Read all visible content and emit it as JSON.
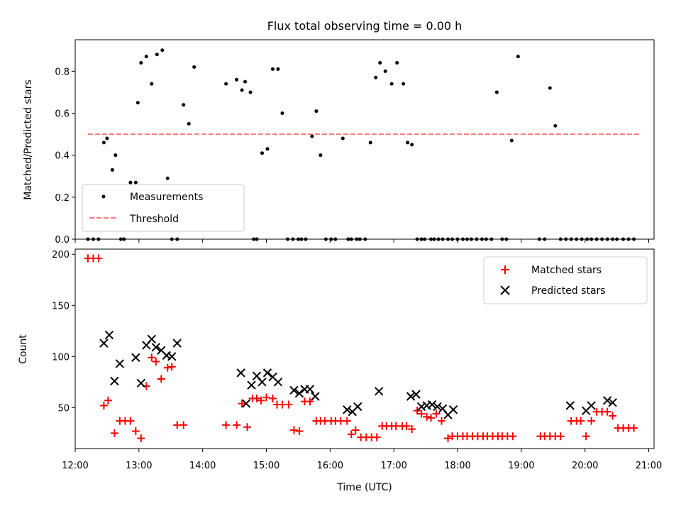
{
  "chart_data": [
    {
      "type": "scatter",
      "title": "Flux total observing time = 0.00 h",
      "xlabel": "",
      "ylabel": "Matched/Predicted stars",
      "xlim": [
        "12:00",
        "21:05"
      ],
      "ylim": [
        0,
        0.95
      ],
      "yticks": [
        0.0,
        0.2,
        0.4,
        0.6,
        0.8
      ],
      "ytick_labels": [
        "0.0",
        "0.2",
        "0.4",
        "0.6",
        "0.8"
      ],
      "legend": {
        "position": "lower-left",
        "entries": [
          "Measurements",
          "Threshold"
        ]
      },
      "grid": false,
      "series": [
        {
          "name": "Measurements",
          "kind": "scatter",
          "marker": "dot",
          "color": "#000000",
          "x": [
            "12:12",
            "12:17",
            "12:22",
            "12:27",
            "12:30",
            "12:35",
            "12:38",
            "12:43",
            "12:46",
            "12:52",
            "12:57",
            "12:59",
            "13:02",
            "13:07",
            "13:12",
            "13:17",
            "13:22",
            "13:27",
            "13:31",
            "13:36",
            "13:42",
            "13:47",
            "13:52",
            "14:22",
            "14:32",
            "14:37",
            "14:40",
            "14:45",
            "14:48",
            "14:51",
            "14:56",
            "15:01",
            "15:06",
            "15:11",
            "15:15",
            "15:20",
            "15:25",
            "15:30",
            "15:33",
            "15:37",
            "15:43",
            "15:47",
            "15:51",
            "15:56",
            "16:01",
            "16:05",
            "16:12",
            "16:17",
            "16:20",
            "16:25",
            "16:28",
            "16:33",
            "16:38",
            "16:43",
            "16:47",
            "16:52",
            "16:58",
            "17:03",
            "17:09",
            "17:13",
            "17:17",
            "17:22",
            "17:26",
            "17:29",
            "17:35",
            "17:38",
            "17:42",
            "17:46",
            "17:51",
            "17:55",
            "18:00",
            "18:05",
            "18:09",
            "18:13",
            "18:18",
            "18:23",
            "18:27",
            "18:32",
            "18:37",
            "18:42",
            "18:46",
            "18:51",
            "18:57",
            "19:17",
            "19:22",
            "19:27",
            "19:32",
            "19:37",
            "19:42",
            "19:47",
            "19:52",
            "19:57",
            "20:02",
            "20:06",
            "20:11",
            "20:16",
            "20:21",
            "20:26",
            "20:30",
            "20:36",
            "20:41",
            "20:46"
          ],
          "y": [
            0,
            0,
            0,
            0.46,
            0.48,
            0.33,
            0.4,
            0,
            0,
            0.27,
            0.27,
            0.65,
            0.84,
            0.87,
            0.74,
            0.88,
            0.9,
            0.29,
            0,
            0,
            0.64,
            0.55,
            0.82,
            0.74,
            0.76,
            0.71,
            0.75,
            0.7,
            0,
            0,
            0.41,
            0.43,
            0.81,
            0.81,
            0.6,
            0,
            0,
            0,
            0,
            0,
            0.49,
            0.61,
            0.4,
            0,
            0,
            0,
            0.48,
            0,
            0,
            0,
            0,
            0,
            0.46,
            0.77,
            0.84,
            0.8,
            0.74,
            0.84,
            0.74,
            0.46,
            0.45,
            0,
            0,
            0,
            0,
            0,
            0,
            0,
            0,
            0,
            0,
            0,
            0,
            0,
            0,
            0,
            0,
            0,
            0.7,
            0,
            0,
            0.47,
            0.87,
            0,
            0,
            0.72,
            0.54,
            0,
            0,
            0,
            0,
            0,
            0,
            0,
            0,
            0,
            0,
            0,
            0,
            0,
            0,
            0
          ],
          "x_fixed": [
            "12:12",
            "12:17",
            "12:22",
            "12:27",
            "12:30",
            "12:35",
            "12:38",
            "12:50",
            "12:53",
            "12:57",
            "13:01",
            "13:06",
            "13:11",
            "13:16",
            "13:20",
            "13:26",
            "13:32",
            "13:36",
            "13:42",
            "14:20",
            "14:32",
            "14:36",
            "14:40",
            "14:45",
            "14:50",
            "14:55",
            "15:00",
            "15:05",
            "15:10",
            "15:15",
            "15:18",
            "15:25",
            "15:30",
            "15:36",
            "15:42",
            "15:46",
            "15:52",
            "15:58",
            "16:02",
            "16:06",
            "16:11",
            "16:15",
            "16:20",
            "16:23",
            "16:28",
            "16:32",
            "16:38",
            "16:44",
            "16:47",
            "16:52",
            "16:57",
            "17:02",
            "17:08",
            "17:14",
            "17:18",
            "17:24",
            "17:28",
            "17:34",
            "17:38",
            "17:44",
            "17:48",
            "17:52",
            "17:58",
            "18:02",
            "18:06",
            "18:10",
            "18:14",
            "18:18",
            "18:22",
            "18:26",
            "18:30",
            "18:35",
            "18:46",
            "19:18",
            "19:22",
            "19:26",
            "19:30",
            "19:35",
            "19:40",
            "19:46",
            "20:01",
            "20:06",
            "20:10",
            "20:16",
            "20:20",
            "20:24",
            "20:30",
            "20:40",
            "20:46"
          ]
        },
        {
          "name": "Threshold",
          "kind": "line",
          "dash": "dashed",
          "color": "#ff7777",
          "x": [
            "12:12",
            "20:52"
          ],
          "y": [
            0.5,
            0.5
          ]
        }
      ]
    },
    {
      "type": "scatter",
      "title": "",
      "xlabel": "Time (UTC)",
      "ylabel": "Count",
      "xlim": [
        "12:00",
        "21:05"
      ],
      "ylim": [
        10,
        205
      ],
      "xticks": [
        "12:00",
        "13:00",
        "14:00",
        "15:00",
        "16:00",
        "17:00",
        "18:00",
        "19:00",
        "20:00",
        "21:00"
      ],
      "yticks": [
        50,
        100,
        150,
        200
      ],
      "ytick_labels": [
        "50",
        "100",
        "150",
        "200"
      ],
      "legend": {
        "position": "top-right",
        "entries": [
          "Matched stars",
          "Predicted stars"
        ]
      },
      "grid": false,
      "series": [
        {
          "name": "Matched stars",
          "kind": "scatter",
          "marker": "plus",
          "color": "#ff0000",
          "points": [
            [
              "12:12",
              196
            ],
            [
              "12:17",
              196
            ],
            [
              "12:22",
              196
            ],
            [
              "12:27",
              52
            ],
            [
              "12:31",
              57
            ],
            [
              "12:37",
              25
            ],
            [
              "12:42",
              37
            ],
            [
              "12:47",
              37
            ],
            [
              "12:52",
              37
            ],
            [
              "12:57",
              27
            ],
            [
              "13:02",
              20
            ],
            [
              "13:07",
              71
            ],
            [
              "13:12",
              99
            ],
            [
              "13:16",
              95
            ],
            [
              "13:21",
              78
            ],
            [
              "13:27",
              89
            ],
            [
              "13:31",
              90
            ],
            [
              "13:36",
              33
            ],
            [
              "13:42",
              33
            ],
            [
              "14:22",
              33
            ],
            [
              "14:32",
              33
            ],
            [
              "14:37",
              54
            ],
            [
              "14:42",
              31
            ],
            [
              "14:47",
              59
            ],
            [
              "14:51",
              59
            ],
            [
              "14:55",
              57
            ],
            [
              "15:00",
              60
            ],
            [
              "15:06",
              59
            ],
            [
              "15:10",
              53
            ],
            [
              "15:15",
              53
            ],
            [
              "15:21",
              53
            ],
            [
              "15:26",
              28
            ],
            [
              "15:31",
              27
            ],
            [
              "15:36",
              56
            ],
            [
              "15:41",
              56
            ],
            [
              "15:47",
              37
            ],
            [
              "15:51",
              37
            ],
            [
              "15:55",
              37
            ],
            [
              "16:01",
              37
            ],
            [
              "16:05",
              37
            ],
            [
              "16:10",
              37
            ],
            [
              "16:16",
              37
            ],
            [
              "16:20",
              24
            ],
            [
              "16:24",
              28
            ],
            [
              "16:29",
              21
            ],
            [
              "16:34",
              21
            ],
            [
              "16:39",
              21
            ],
            [
              "16:44",
              21
            ],
            [
              "16:49",
              32
            ],
            [
              "16:53",
              32
            ],
            [
              "16:58",
              32
            ],
            [
              "17:02",
              32
            ],
            [
              "17:08",
              32
            ],
            [
              "17:12",
              32
            ],
            [
              "17:17",
              29
            ],
            [
              "17:22",
              47
            ],
            [
              "17:26",
              44
            ],
            [
              "17:31",
              41
            ],
            [
              "17:35",
              40
            ],
            [
              "17:40",
              44
            ],
            [
              "17:45",
              37
            ],
            [
              "17:51",
              20
            ],
            [
              "17:55",
              22
            ],
            [
              "18:00",
              22
            ],
            [
              "18:05",
              22
            ],
            [
              "18:09",
              22
            ],
            [
              "18:14",
              22
            ],
            [
              "18:19",
              22
            ],
            [
              "18:24",
              22
            ],
            [
              "18:28",
              22
            ],
            [
              "18:33",
              22
            ],
            [
              "18:38",
              22
            ],
            [
              "18:42",
              22
            ],
            [
              "18:47",
              22
            ],
            [
              "18:52",
              22
            ],
            [
              "19:18",
              22
            ],
            [
              "19:22",
              22
            ],
            [
              "19:27",
              22
            ],
            [
              "19:32",
              22
            ],
            [
              "19:37",
              22
            ],
            [
              "19:47",
              37
            ],
            [
              "19:52",
              37
            ],
            [
              "19:56",
              37
            ],
            [
              "20:01",
              22
            ],
            [
              "20:06",
              37
            ],
            [
              "20:11",
              46
            ],
            [
              "20:16",
              46
            ],
            [
              "20:21",
              46
            ],
            [
              "20:26",
              42
            ],
            [
              "20:31",
              30
            ],
            [
              "20:36",
              30
            ],
            [
              "20:41",
              30
            ],
            [
              "20:46",
              30
            ]
          ]
        },
        {
          "name": "Predicted stars",
          "kind": "scatter",
          "marker": "x",
          "color": "#000000",
          "points": [
            [
              "12:27",
              113
            ],
            [
              "12:32",
              121
            ],
            [
              "12:37",
              76
            ],
            [
              "12:42",
              93
            ],
            [
              "12:57",
              99
            ],
            [
              "13:02",
              74
            ],
            [
              "13:07",
              111
            ],
            [
              "13:12",
              117
            ],
            [
              "13:16",
              109
            ],
            [
              "13:21",
              106
            ],
            [
              "13:26",
              101
            ],
            [
              "13:31",
              100
            ],
            [
              "13:36",
              113
            ],
            [
              "14:36",
              84
            ],
            [
              "14:41",
              54
            ],
            [
              "14:46",
              72
            ],
            [
              "14:51",
              81
            ],
            [
              "14:56",
              75
            ],
            [
              "15:01",
              84
            ],
            [
              "15:06",
              80
            ],
            [
              "15:11",
              75
            ],
            [
              "15:26",
              67
            ],
            [
              "15:31",
              64
            ],
            [
              "15:36",
              68
            ],
            [
              "15:41",
              68
            ],
            [
              "15:46",
              61
            ],
            [
              "16:16",
              48
            ],
            [
              "16:21",
              46
            ],
            [
              "16:26",
              51
            ],
            [
              "16:46",
              66
            ],
            [
              "17:16",
              61
            ],
            [
              "17:21",
              63
            ],
            [
              "17:26",
              51
            ],
            [
              "17:31",
              52
            ],
            [
              "17:36",
              53
            ],
            [
              "17:41",
              51
            ],
            [
              "17:46",
              49
            ],
            [
              "17:51",
              43
            ],
            [
              "17:56",
              48
            ],
            [
              "19:46",
              52
            ],
            [
              "20:01",
              47
            ],
            [
              "20:06",
              52
            ],
            [
              "20:21",
              57
            ],
            [
              "20:26",
              55
            ]
          ]
        }
      ]
    }
  ]
}
